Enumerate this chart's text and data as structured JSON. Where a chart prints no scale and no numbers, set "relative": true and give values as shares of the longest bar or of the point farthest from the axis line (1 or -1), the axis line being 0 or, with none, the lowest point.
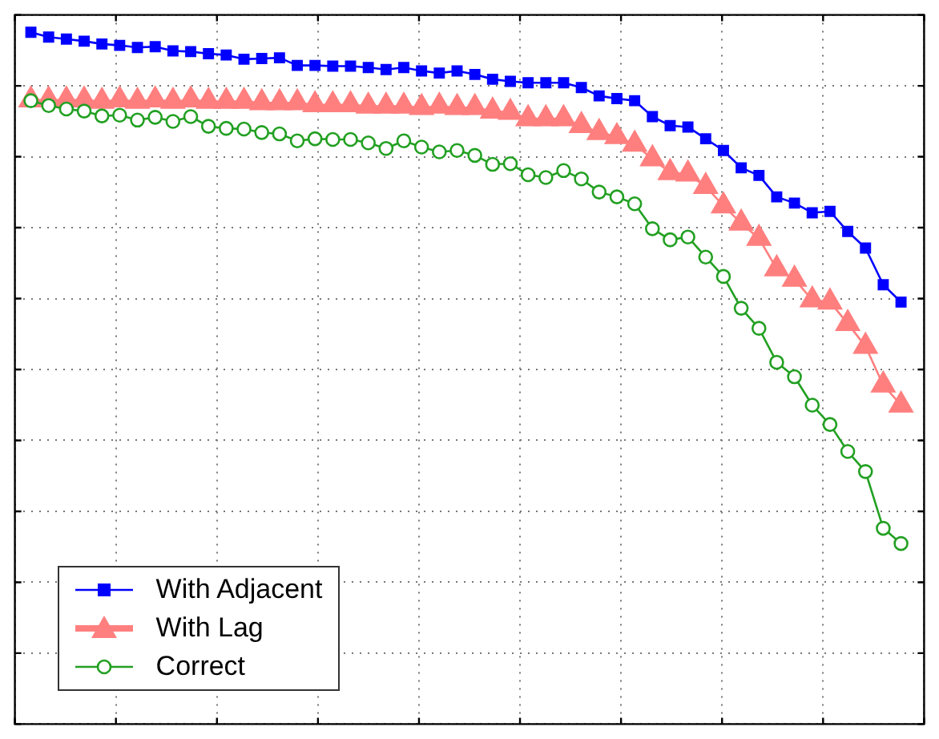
{
  "chart_data": {
    "type": "line",
    "relative": true,
    "grid": true,
    "legend": "bottom left",
    "categories": [
      null,
      null,
      null,
      null,
      null,
      null,
      null,
      null,
      null,
      null,
      null,
      null,
      null,
      null,
      null,
      null,
      null,
      null,
      null,
      null,
      null,
      null,
      null,
      null,
      null,
      null,
      null,
      null,
      null,
      null,
      null,
      null,
      null,
      null,
      null,
      null,
      null,
      null,
      null,
      null,
      null,
      null,
      null,
      null,
      null,
      null,
      null,
      null,
      null,
      null
    ],
    "series": [
      {
        "name": "With Adjacent",
        "color": "#0000ff",
        "marker": "square",
        "values": [
          1.0,
          0.993,
          0.99,
          0.987,
          0.983,
          0.981,
          0.978,
          0.979,
          0.973,
          0.972,
          0.969,
          0.967,
          0.961,
          0.962,
          0.963,
          0.952,
          0.952,
          0.951,
          0.951,
          0.949,
          0.946,
          0.949,
          0.944,
          0.941,
          0.944,
          0.939,
          0.932,
          0.929,
          0.927,
          0.927,
          0.927,
          0.92,
          0.908,
          0.904,
          0.901,
          0.878,
          0.865,
          0.863,
          0.846,
          0.829,
          0.804,
          0.793,
          0.762,
          0.753,
          0.739,
          0.741,
          0.712,
          0.688,
          0.635,
          0.61
        ]
      },
      {
        "name": "With Lag",
        "color": "#ff7f7f",
        "marker": "triangle",
        "values": [
          0.902,
          0.902,
          0.902,
          0.902,
          0.9,
          0.902,
          0.9,
          0.902,
          0.9,
          0.902,
          0.9,
          0.9,
          0.9,
          0.898,
          0.898,
          0.898,
          0.895,
          0.895,
          0.895,
          0.893,
          0.893,
          0.893,
          0.891,
          0.893,
          0.891,
          0.891,
          0.886,
          0.884,
          0.875,
          0.875,
          0.875,
          0.865,
          0.855,
          0.849,
          0.838,
          0.817,
          0.797,
          0.795,
          0.777,
          0.749,
          0.724,
          0.702,
          0.658,
          0.643,
          0.613,
          0.61,
          0.579,
          0.546,
          0.49,
          0.461
        ]
      },
      {
        "name": "Correct",
        "color": "#22a022",
        "marker": "circle",
        "values": [
          0.901,
          0.894,
          0.889,
          0.886,
          0.879,
          0.88,
          0.873,
          0.877,
          0.871,
          0.878,
          0.864,
          0.861,
          0.86,
          0.855,
          0.853,
          0.843,
          0.846,
          0.845,
          0.845,
          0.84,
          0.832,
          0.843,
          0.834,
          0.827,
          0.829,
          0.822,
          0.809,
          0.81,
          0.794,
          0.79,
          0.8,
          0.788,
          0.769,
          0.762,
          0.752,
          0.716,
          0.7,
          0.704,
          0.675,
          0.647,
          0.601,
          0.572,
          0.523,
          0.502,
          0.461,
          0.433,
          0.394,
          0.365,
          0.283,
          0.261
        ]
      }
    ]
  }
}
